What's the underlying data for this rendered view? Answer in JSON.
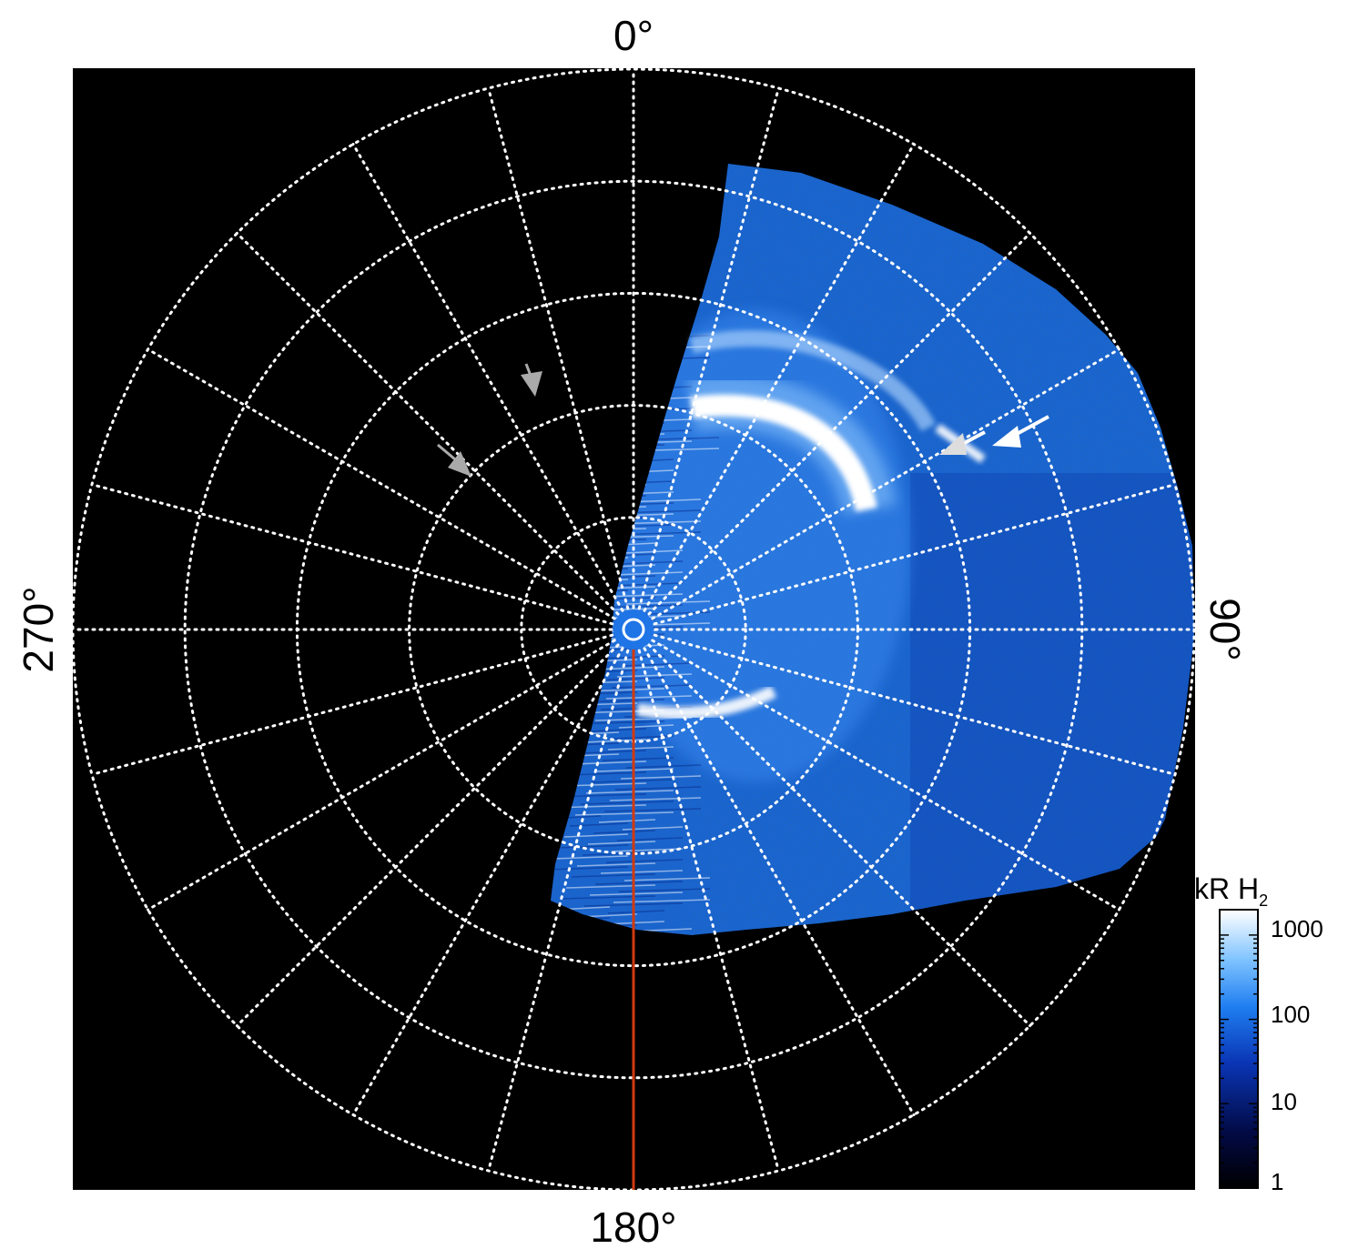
{
  "figure": {
    "labels": {
      "top": "0°",
      "bottom": "180°",
      "left": "270°",
      "right": "90°"
    },
    "colorbar": {
      "unit": "kR H",
      "unit_subscript": "2",
      "ticks": [
        "1000",
        "100",
        "10",
        "1"
      ],
      "scale": "log",
      "range": [
        1,
        2000
      ]
    },
    "grid": {
      "style": "dotted",
      "color": "#ffffff",
      "rings": 5,
      "spokes_every_deg": 15
    },
    "meridian_line_color": "#d03a10",
    "annotations": {
      "white_arrows": 2,
      "gray_arrows": 2
    },
    "colors": {
      "background": "#000000",
      "emission_dark": "#0a1e6e",
      "emission_mid": "#1f74e6",
      "emission_bright": "#ffffff"
    }
  }
}
